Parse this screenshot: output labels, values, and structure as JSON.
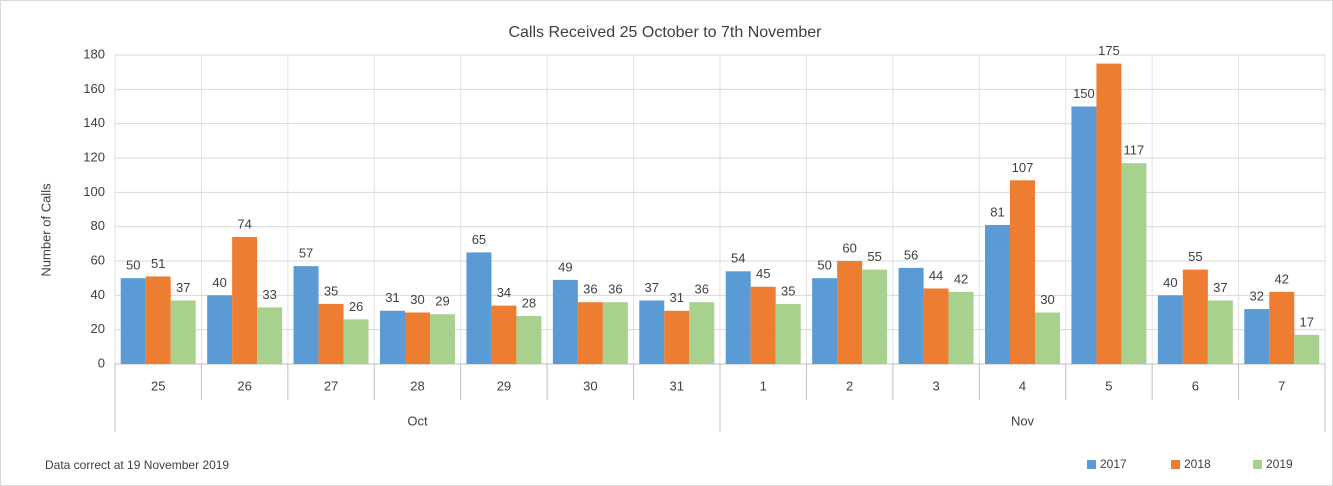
{
  "chart_data": {
    "type": "bar",
    "title": "Calls Received 25 October to 7th November",
    "y_label": "Number of Calls",
    "note": "Data correct at 19 November 2019",
    "category_groups": [
      {
        "label": "Oct",
        "categories": [
          "25",
          "26",
          "27",
          "28",
          "29",
          "30",
          "31"
        ]
      },
      {
        "label": "Nov",
        "categories": [
          "1",
          "2",
          "3",
          "4",
          "5",
          "6",
          "7"
        ]
      }
    ],
    "series": [
      {
        "name": "2017",
        "color": "#5b9bd5",
        "values": [
          50,
          40,
          57,
          31,
          65,
          49,
          37,
          54,
          50,
          56,
          81,
          150,
          40,
          32
        ]
      },
      {
        "name": "2018",
        "color": "#ed7d31",
        "values": [
          51,
          74,
          35,
          30,
          34,
          36,
          31,
          45,
          60,
          44,
          107,
          175,
          55,
          42
        ]
      },
      {
        "name": "2019",
        "color": "#a9d18e",
        "values": [
          37,
          33,
          26,
          29,
          28,
          36,
          36,
          35,
          55,
          42,
          30,
          117,
          37,
          17
        ]
      }
    ],
    "ylim": [
      0,
      180
    ],
    "yticks": [
      0,
      20,
      40,
      60,
      80,
      100,
      120,
      140,
      160,
      180
    ],
    "grid": true,
    "legend": "bottom-right",
    "data_labels": true
  }
}
